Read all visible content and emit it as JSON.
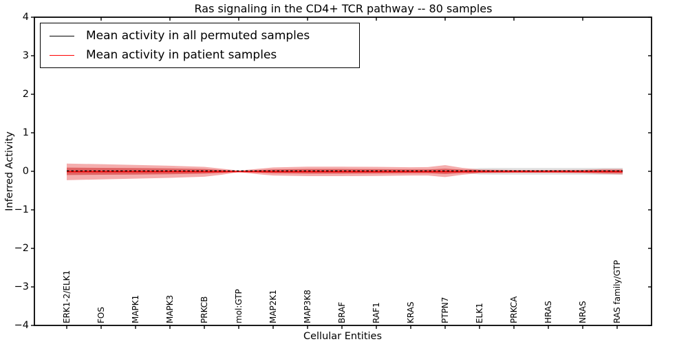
{
  "chart_data": {
    "type": "line",
    "title": "Ras signaling in the CD4+ TCR pathway -- 80 samples",
    "xlabel": "Cellular Entities",
    "ylabel": "Inferred Activity",
    "ylim": [
      -4,
      4
    ],
    "yticks": [
      4,
      3,
      2,
      1,
      0,
      -1,
      -2,
      -3,
      -4
    ],
    "grid": false,
    "categories": [
      "ERK1-2/ELK1",
      "FOS",
      "MAPK1",
      "MAPK3",
      "PRKCB",
      "mol:GTP",
      "MAP2K1",
      "MAP3K8",
      "BRAF",
      "RAF1",
      "KRAS",
      "PTPN7",
      "ELK1",
      "PRKCA",
      "HRAS",
      "NRAS",
      "RAS family/GTP"
    ],
    "series": [
      {
        "name": "Mean activity in patient samples",
        "color": "#ff0000",
        "style": "solid",
        "values": [
          -0.01,
          -0.01,
          -0.01,
          -0.01,
          -0.01,
          -0.01,
          -0.01,
          -0.01,
          -0.01,
          -0.01,
          -0.01,
          -0.01,
          -0.01,
          -0.01,
          -0.01,
          -0.01,
          -0.01
        ]
      },
      {
        "name": "Mean activity in all permuted samples",
        "color": "#000000",
        "style": "dashed",
        "values": [
          0.01,
          0.01,
          0.01,
          0.01,
          0.01,
          0.01,
          0.01,
          0.01,
          0.01,
          0.01,
          0.01,
          0.01,
          0.01,
          0.01,
          0.01,
          0.01,
          0.01
        ]
      }
    ],
    "bands": [
      {
        "name": "permuted-std-band",
        "color": "rgba(110,110,110,0.20)",
        "points": [
          [
            11.6,
            0.045,
            0.045
          ],
          [
            12,
            0.085,
            0.085
          ],
          [
            12.4,
            0.09,
            0.09
          ],
          [
            15,
            0.09,
            0.09
          ],
          [
            16.16,
            0.09,
            0.09
          ]
        ]
      },
      {
        "name": "patient-std-band-outer",
        "color": "rgba(220,0,0,0.32)",
        "points": [
          [
            0,
            0.2,
            0.23
          ],
          [
            1,
            0.185,
            0.21
          ],
          [
            2,
            0.165,
            0.19
          ],
          [
            3,
            0.145,
            0.17
          ],
          [
            4,
            0.115,
            0.14
          ],
          [
            4.5,
            0.07,
            0.09
          ],
          [
            5,
            0.02,
            0.02
          ],
          [
            5.5,
            0.06,
            0.07
          ],
          [
            6,
            0.1,
            0.11
          ],
          [
            7,
            0.12,
            0.125
          ],
          [
            8,
            0.12,
            0.125
          ],
          [
            9,
            0.115,
            0.12
          ],
          [
            10,
            0.105,
            0.11
          ],
          [
            10.5,
            0.11,
            0.11
          ],
          [
            11,
            0.16,
            0.15
          ],
          [
            11.5,
            0.09,
            0.09
          ],
          [
            12,
            0.05,
            0.05
          ],
          [
            13,
            0.035,
            0.04
          ],
          [
            14,
            0.035,
            0.04
          ],
          [
            15,
            0.04,
            0.05
          ],
          [
            15.6,
            0.06,
            0.07
          ],
          [
            16.16,
            0.06,
            0.08
          ]
        ]
      },
      {
        "name": "patient-std-band-inner",
        "color": "rgba(200,10,10,0.45)",
        "points": [
          [
            0,
            0.095,
            0.095
          ],
          [
            1,
            0.09,
            0.09
          ],
          [
            2,
            0.085,
            0.085
          ],
          [
            3,
            0.075,
            0.075
          ],
          [
            4,
            0.06,
            0.06
          ],
          [
            4.5,
            0.035,
            0.04
          ],
          [
            5,
            0.012,
            0.012
          ],
          [
            5.5,
            0.03,
            0.03
          ],
          [
            6,
            0.05,
            0.05
          ],
          [
            7,
            0.06,
            0.06
          ],
          [
            8,
            0.06,
            0.06
          ],
          [
            9,
            0.055,
            0.055
          ],
          [
            10,
            0.05,
            0.05
          ],
          [
            10.5,
            0.05,
            0.05
          ],
          [
            11,
            0.07,
            0.07
          ],
          [
            11.5,
            0.045,
            0.045
          ],
          [
            12,
            0.03,
            0.03
          ],
          [
            13,
            0.02,
            0.025
          ],
          [
            14,
            0.02,
            0.025
          ],
          [
            15,
            0.022,
            0.028
          ],
          [
            15.6,
            0.03,
            0.035
          ],
          [
            16.16,
            0.03,
            0.04
          ]
        ]
      }
    ],
    "legend": {
      "position": "upper left",
      "entries": [
        {
          "label": "Mean activity in all permuted samples",
          "color": "#000000",
          "style": "solid"
        },
        {
          "label": "Mean activity in patient samples",
          "color": "#ff0000",
          "style": "solid"
        }
      ]
    },
    "top_tick_indices": [
      1,
      3,
      5,
      7,
      9,
      11,
      13,
      15
    ]
  }
}
